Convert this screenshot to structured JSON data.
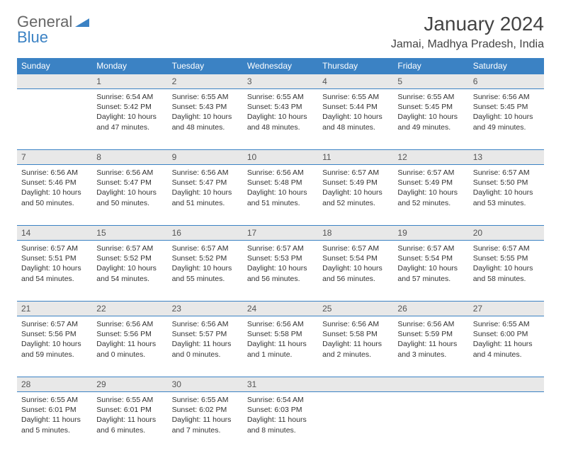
{
  "brand": {
    "part1": "General",
    "part2": "Blue"
  },
  "title": "January 2024",
  "location": "Jamai, Madhya Pradesh, India",
  "colors": {
    "header_bg": "#3b82c4",
    "header_text": "#ffffff",
    "daynum_bg": "#e8e8e8",
    "border": "#3b82c4",
    "text": "#333333",
    "brand_gray": "#666666",
    "brand_blue": "#3b82c4"
  },
  "weekdays": [
    "Sunday",
    "Monday",
    "Tuesday",
    "Wednesday",
    "Thursday",
    "Friday",
    "Saturday"
  ],
  "weeks": [
    {
      "nums": [
        "",
        "1",
        "2",
        "3",
        "4",
        "5",
        "6"
      ],
      "cells": [
        null,
        {
          "sunrise": "Sunrise: 6:54 AM",
          "sunset": "Sunset: 5:42 PM",
          "daylight": "Daylight: 10 hours and 47 minutes."
        },
        {
          "sunrise": "Sunrise: 6:55 AM",
          "sunset": "Sunset: 5:43 PM",
          "daylight": "Daylight: 10 hours and 48 minutes."
        },
        {
          "sunrise": "Sunrise: 6:55 AM",
          "sunset": "Sunset: 5:43 PM",
          "daylight": "Daylight: 10 hours and 48 minutes."
        },
        {
          "sunrise": "Sunrise: 6:55 AM",
          "sunset": "Sunset: 5:44 PM",
          "daylight": "Daylight: 10 hours and 48 minutes."
        },
        {
          "sunrise": "Sunrise: 6:55 AM",
          "sunset": "Sunset: 5:45 PM",
          "daylight": "Daylight: 10 hours and 49 minutes."
        },
        {
          "sunrise": "Sunrise: 6:56 AM",
          "sunset": "Sunset: 5:45 PM",
          "daylight": "Daylight: 10 hours and 49 minutes."
        }
      ]
    },
    {
      "nums": [
        "7",
        "8",
        "9",
        "10",
        "11",
        "12",
        "13"
      ],
      "cells": [
        {
          "sunrise": "Sunrise: 6:56 AM",
          "sunset": "Sunset: 5:46 PM",
          "daylight": "Daylight: 10 hours and 50 minutes."
        },
        {
          "sunrise": "Sunrise: 6:56 AM",
          "sunset": "Sunset: 5:47 PM",
          "daylight": "Daylight: 10 hours and 50 minutes."
        },
        {
          "sunrise": "Sunrise: 6:56 AM",
          "sunset": "Sunset: 5:47 PM",
          "daylight": "Daylight: 10 hours and 51 minutes."
        },
        {
          "sunrise": "Sunrise: 6:56 AM",
          "sunset": "Sunset: 5:48 PM",
          "daylight": "Daylight: 10 hours and 51 minutes."
        },
        {
          "sunrise": "Sunrise: 6:57 AM",
          "sunset": "Sunset: 5:49 PM",
          "daylight": "Daylight: 10 hours and 52 minutes."
        },
        {
          "sunrise": "Sunrise: 6:57 AM",
          "sunset": "Sunset: 5:49 PM",
          "daylight": "Daylight: 10 hours and 52 minutes."
        },
        {
          "sunrise": "Sunrise: 6:57 AM",
          "sunset": "Sunset: 5:50 PM",
          "daylight": "Daylight: 10 hours and 53 minutes."
        }
      ]
    },
    {
      "nums": [
        "14",
        "15",
        "16",
        "17",
        "18",
        "19",
        "20"
      ],
      "cells": [
        {
          "sunrise": "Sunrise: 6:57 AM",
          "sunset": "Sunset: 5:51 PM",
          "daylight": "Daylight: 10 hours and 54 minutes."
        },
        {
          "sunrise": "Sunrise: 6:57 AM",
          "sunset": "Sunset: 5:52 PM",
          "daylight": "Daylight: 10 hours and 54 minutes."
        },
        {
          "sunrise": "Sunrise: 6:57 AM",
          "sunset": "Sunset: 5:52 PM",
          "daylight": "Daylight: 10 hours and 55 minutes."
        },
        {
          "sunrise": "Sunrise: 6:57 AM",
          "sunset": "Sunset: 5:53 PM",
          "daylight": "Daylight: 10 hours and 56 minutes."
        },
        {
          "sunrise": "Sunrise: 6:57 AM",
          "sunset": "Sunset: 5:54 PM",
          "daylight": "Daylight: 10 hours and 56 minutes."
        },
        {
          "sunrise": "Sunrise: 6:57 AM",
          "sunset": "Sunset: 5:54 PM",
          "daylight": "Daylight: 10 hours and 57 minutes."
        },
        {
          "sunrise": "Sunrise: 6:57 AM",
          "sunset": "Sunset: 5:55 PM",
          "daylight": "Daylight: 10 hours and 58 minutes."
        }
      ]
    },
    {
      "nums": [
        "21",
        "22",
        "23",
        "24",
        "25",
        "26",
        "27"
      ],
      "cells": [
        {
          "sunrise": "Sunrise: 6:57 AM",
          "sunset": "Sunset: 5:56 PM",
          "daylight": "Daylight: 10 hours and 59 minutes."
        },
        {
          "sunrise": "Sunrise: 6:56 AM",
          "sunset": "Sunset: 5:56 PM",
          "daylight": "Daylight: 11 hours and 0 minutes."
        },
        {
          "sunrise": "Sunrise: 6:56 AM",
          "sunset": "Sunset: 5:57 PM",
          "daylight": "Daylight: 11 hours and 0 minutes."
        },
        {
          "sunrise": "Sunrise: 6:56 AM",
          "sunset": "Sunset: 5:58 PM",
          "daylight": "Daylight: 11 hours and 1 minute."
        },
        {
          "sunrise": "Sunrise: 6:56 AM",
          "sunset": "Sunset: 5:58 PM",
          "daylight": "Daylight: 11 hours and 2 minutes."
        },
        {
          "sunrise": "Sunrise: 6:56 AM",
          "sunset": "Sunset: 5:59 PM",
          "daylight": "Daylight: 11 hours and 3 minutes."
        },
        {
          "sunrise": "Sunrise: 6:55 AM",
          "sunset": "Sunset: 6:00 PM",
          "daylight": "Daylight: 11 hours and 4 minutes."
        }
      ]
    },
    {
      "nums": [
        "28",
        "29",
        "30",
        "31",
        "",
        "",
        ""
      ],
      "cells": [
        {
          "sunrise": "Sunrise: 6:55 AM",
          "sunset": "Sunset: 6:01 PM",
          "daylight": "Daylight: 11 hours and 5 minutes."
        },
        {
          "sunrise": "Sunrise: 6:55 AM",
          "sunset": "Sunset: 6:01 PM",
          "daylight": "Daylight: 11 hours and 6 minutes."
        },
        {
          "sunrise": "Sunrise: 6:55 AM",
          "sunset": "Sunset: 6:02 PM",
          "daylight": "Daylight: 11 hours and 7 minutes."
        },
        {
          "sunrise": "Sunrise: 6:54 AM",
          "sunset": "Sunset: 6:03 PM",
          "daylight": "Daylight: 11 hours and 8 minutes."
        },
        null,
        null,
        null
      ]
    }
  ]
}
